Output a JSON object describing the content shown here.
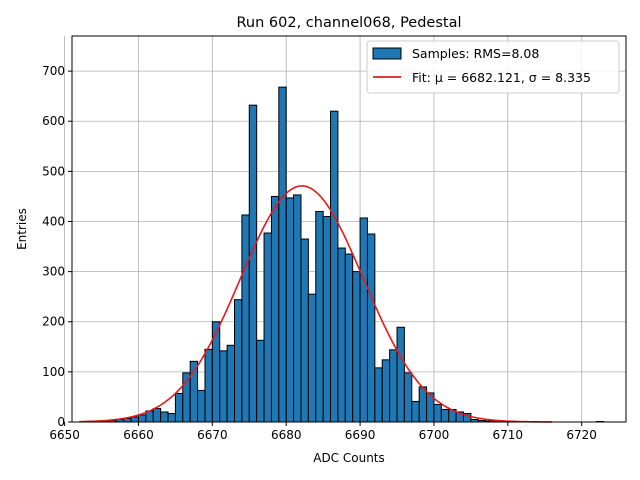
{
  "chart_data": {
    "type": "bar",
    "title": "Run 602, channel068, Pedestal",
    "xlabel": "ADC Counts",
    "ylabel": "Entries",
    "xlim": [
      6651,
      6726
    ],
    "ylim": [
      0,
      770
    ],
    "x_ticks": [
      6650,
      6660,
      6670,
      6680,
      6690,
      6700,
      6710,
      6720
    ],
    "y_ticks": [
      0,
      100,
      200,
      300,
      400,
      500,
      600,
      700
    ],
    "grid": true,
    "legend_position": "top-right",
    "bin_width": 1,
    "bin_left_edges": [
      6652,
      6653,
      6654,
      6655,
      6656,
      6657,
      6658,
      6659,
      6660,
      6661,
      6662,
      6663,
      6664,
      6665,
      6666,
      6667,
      6668,
      6669,
      6670,
      6671,
      6672,
      6673,
      6674,
      6675,
      6676,
      6677,
      6678,
      6679,
      6680,
      6681,
      6682,
      6683,
      6684,
      6685,
      6686,
      6687,
      6688,
      6689,
      6690,
      6691,
      6692,
      6693,
      6694,
      6695,
      6696,
      6697,
      6698,
      6699,
      6700,
      6701,
      6702,
      6703,
      6704,
      6705,
      6706,
      6707,
      6708,
      6709,
      6710,
      6711,
      6712,
      6713,
      6714,
      6715,
      6716,
      6717,
      6718,
      6719,
      6720,
      6721,
      6722
    ],
    "histogram_counts": [
      0,
      0,
      1,
      2,
      3,
      5,
      7,
      10,
      14,
      22,
      27,
      20,
      17,
      57,
      98,
      121,
      63,
      145,
      200,
      142,
      153,
      244,
      413,
      632,
      163,
      377,
      450,
      668,
      447,
      453,
      365,
      255,
      420,
      410,
      620,
      347,
      335,
      300,
      407,
      375,
      108,
      124,
      144,
      189,
      98,
      41,
      70,
      58,
      35,
      25,
      25,
      20,
      17,
      5,
      3,
      2,
      1,
      1,
      1,
      0,
      0,
      0,
      0,
      0,
      0,
      0,
      0,
      0,
      0,
      0,
      1
    ],
    "fit_mu": 6682.121,
    "fit_sigma": 8.335,
    "fit_peak": 471,
    "fit_range": [
      6652,
      6716
    ],
    "series": [
      {
        "name": "Samples: RMS=8.08",
        "kind": "histogram",
        "color": "#1f77b4",
        "edge_color": "#000000"
      },
      {
        "name": "Fit: μ = 6682.121, σ = 8.335",
        "kind": "line",
        "color": "#e41a1c"
      }
    ]
  }
}
